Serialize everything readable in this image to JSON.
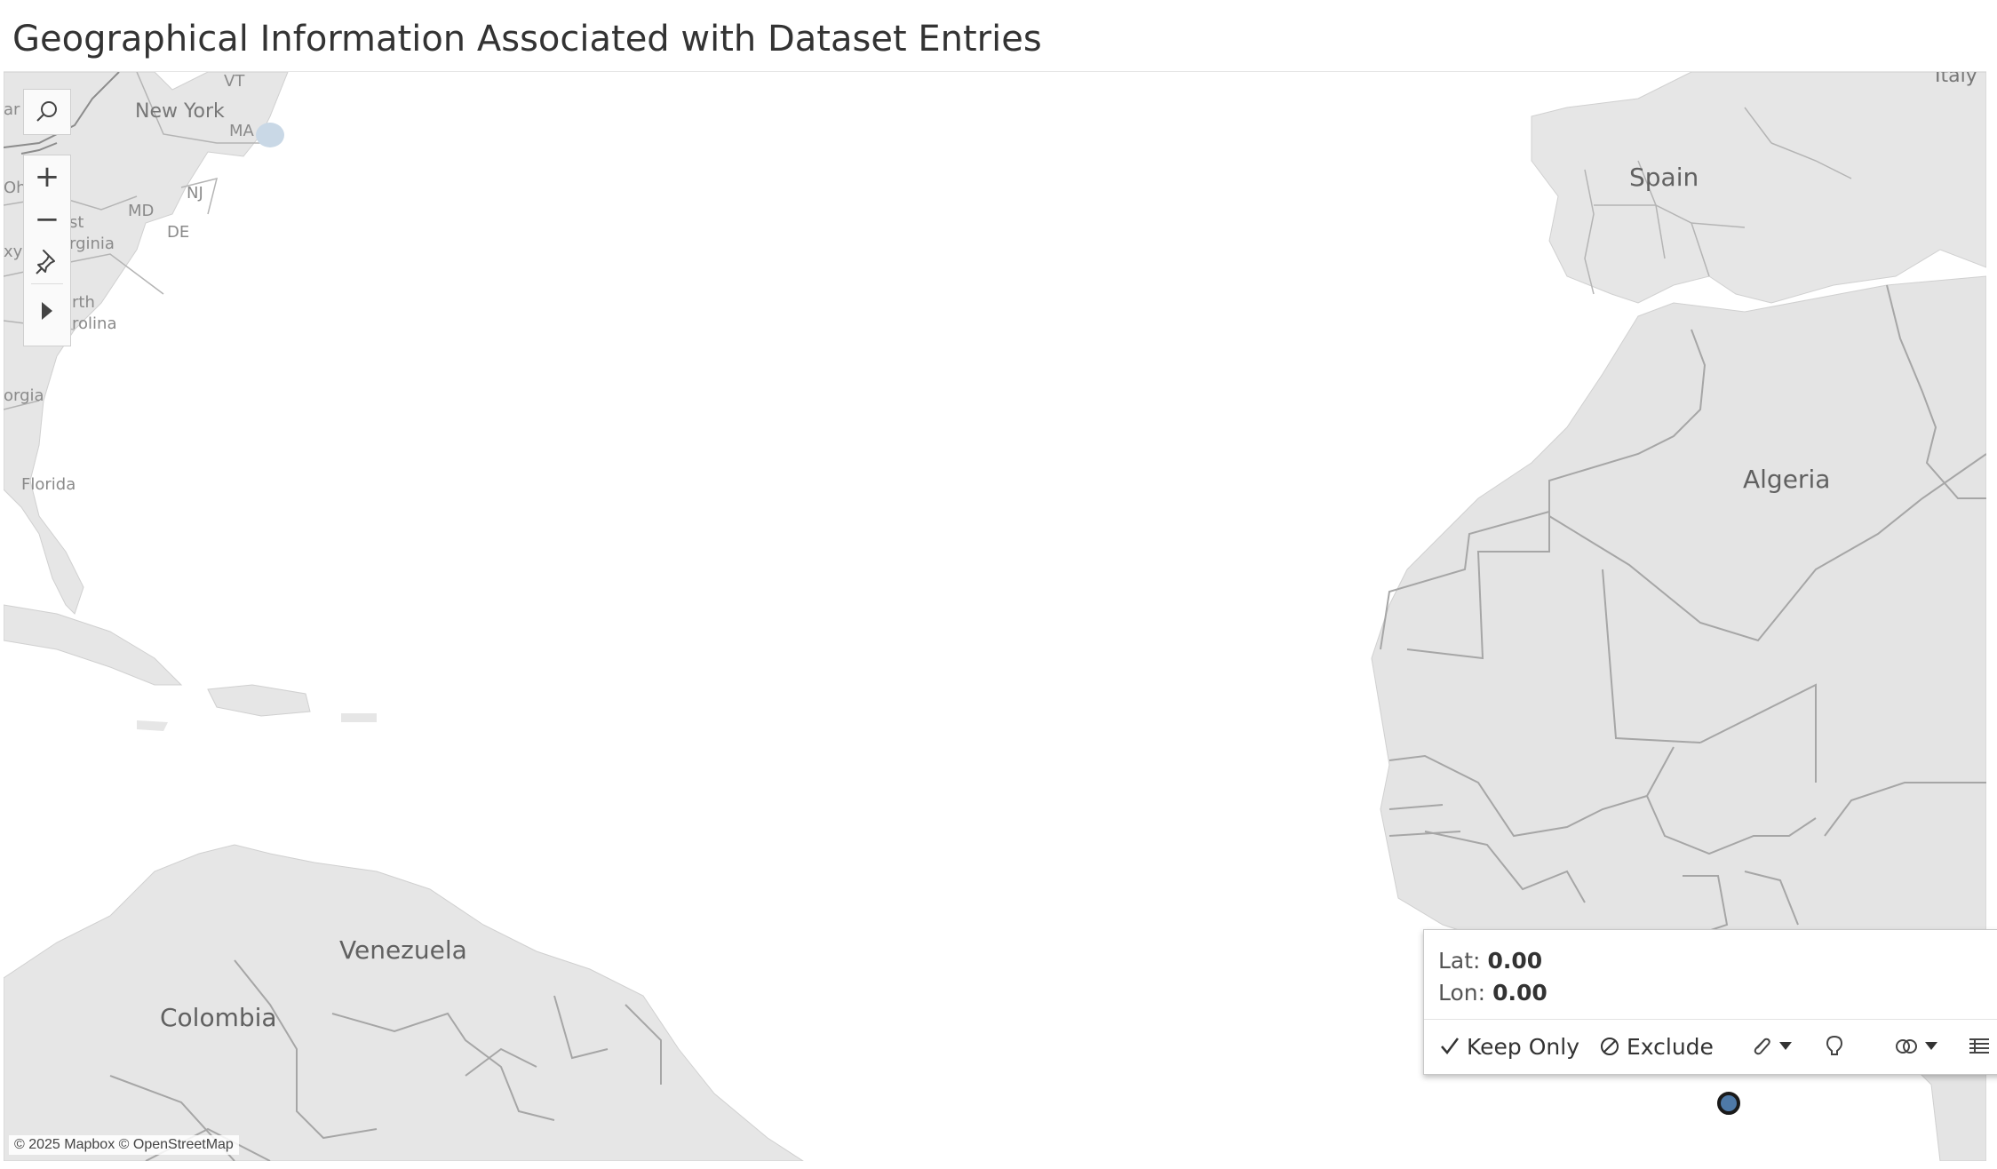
{
  "title": "Geographical Information Associated with Dataset Entries",
  "map": {
    "labels": {
      "spain": "Spain",
      "algeria": "Algeria",
      "venezuela": "Venezuela",
      "colombia": "Colombia",
      "new_york": "New York",
      "florida": "Florida",
      "italy": "Italy",
      "vt": "VT",
      "ma": "MA",
      "nj": "NJ",
      "md": "MD",
      "de": "DE",
      "west_virginia_fragment": "st\nrginia",
      "north_carolina_fragment": "orth\narolina",
      "georgia_fragment": "orgia",
      "oh_fragment": "Oh",
      "ky_fragment": "xy",
      "ar_fragment": "ar"
    },
    "attribution": "© 2025 Mapbox © OpenStreetMap",
    "colors": {
      "land": "#e4e4e4",
      "water": "#ffffff",
      "border": "#9a9a9a",
      "mark": "#4e79a7"
    }
  },
  "controls": {
    "search_icon": "search-icon",
    "zoom_in_label": "+",
    "zoom_out_label": "−",
    "pin_icon": "pin-icon",
    "expand_icon": "play-icon"
  },
  "tooltip": {
    "lat_label": "Lat:",
    "lat_value": "0.00",
    "lon_label": "Lon:",
    "lon_value": "0.00",
    "keep_only_label": "Keep Only",
    "exclude_label": "Exclude"
  },
  "chart_data": {
    "type": "scatter",
    "title": "Geographical Information Associated with Dataset Entries",
    "points": [
      {
        "lat": 0.0,
        "lon": 0.0
      }
    ]
  }
}
